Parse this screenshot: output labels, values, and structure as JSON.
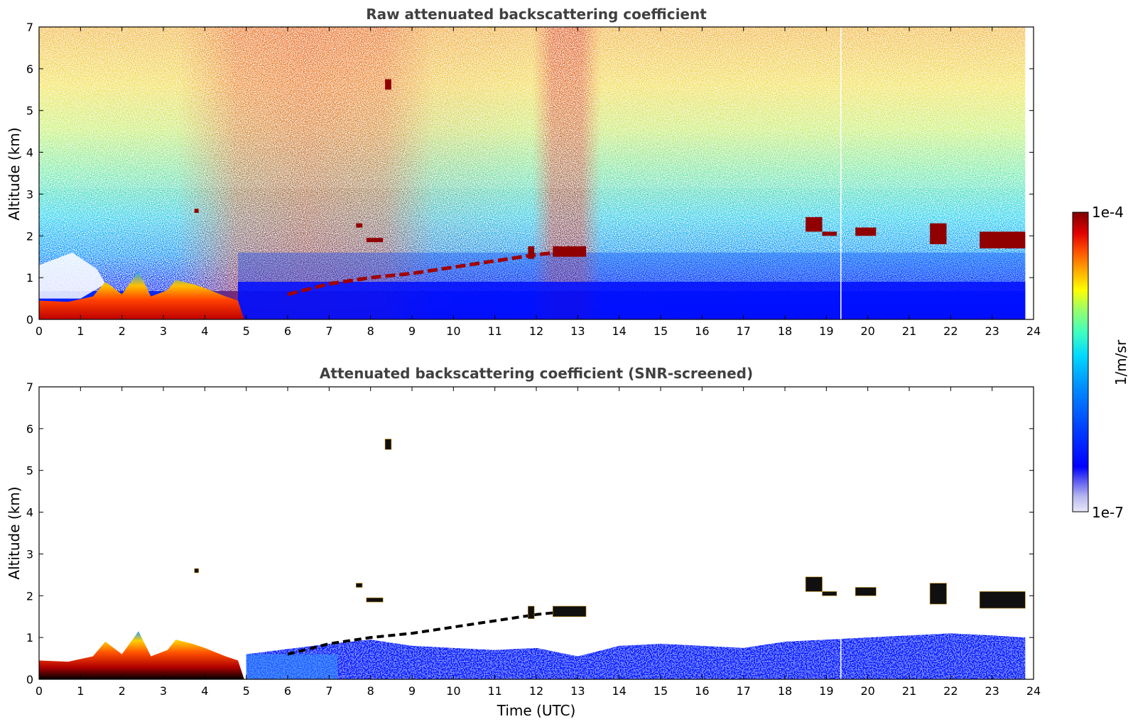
{
  "chart_data": [
    {
      "type": "heatmap",
      "title": "Raw attenuated backscattering coefficient",
      "xlabel": "",
      "ylabel": "Altitude (km)",
      "xlim": [
        0,
        24
      ],
      "ylim": [
        0,
        7
      ],
      "xticks": [
        0,
        1,
        2,
        3,
        4,
        5,
        6,
        7,
        8,
        9,
        10,
        11,
        12,
        13,
        14,
        15,
        16,
        17,
        18,
        19,
        20,
        21,
        22,
        23,
        24
      ],
      "yticks": [
        0,
        1,
        2,
        3,
        4,
        5,
        6,
        7
      ],
      "data_end_time": 23.8,
      "missing_profile_time": 19.35,
      "boundary_layer_top_km": [
        [
          0,
          0.45
        ],
        [
          1,
          0.5
        ],
        [
          1.6,
          0.85
        ],
        [
          2.4,
          1.1
        ],
        [
          3.3,
          0.9
        ],
        [
          4.0,
          0.75
        ],
        [
          4.8,
          0.45
        ],
        [
          5.0,
          0.6
        ],
        [
          6.0,
          0.6
        ],
        [
          7.0,
          0.85
        ],
        [
          8.0,
          1.0
        ],
        [
          9.0,
          1.1
        ],
        [
          10.0,
          1.25
        ],
        [
          11.0,
          1.4
        ],
        [
          12.0,
          1.55
        ],
        [
          13.0,
          1.65
        ]
      ],
      "cloud_layers": [
        {
          "start": 3.75,
          "end": 3.85,
          "base_km": 2.55,
          "top_km": 2.65
        },
        {
          "start": 7.65,
          "end": 7.8,
          "base_km": 2.2,
          "top_km": 2.3
        },
        {
          "start": 7.9,
          "end": 8.3,
          "base_km": 1.85,
          "top_km": 1.95
        },
        {
          "start": 8.35,
          "end": 8.5,
          "base_km": 5.5,
          "top_km": 5.75
        },
        {
          "start": 11.8,
          "end": 11.95,
          "base_km": 1.45,
          "top_km": 1.75
        },
        {
          "start": 12.4,
          "end": 13.2,
          "base_km": 1.5,
          "top_km": 1.75
        },
        {
          "start": 18.5,
          "end": 18.9,
          "base_km": 2.1,
          "top_km": 2.45
        },
        {
          "start": 18.9,
          "end": 19.25,
          "base_km": 2.0,
          "top_km": 2.1
        },
        {
          "start": 19.7,
          "end": 20.2,
          "base_km": 2.0,
          "top_km": 2.2
        },
        {
          "start": 21.5,
          "end": 21.9,
          "base_km": 1.8,
          "top_km": 2.3
        },
        {
          "start": 22.7,
          "end": 23.8,
          "base_km": 1.7,
          "top_km": 2.1
        }
      ]
    },
    {
      "type": "heatmap",
      "title": "Attenuated backscattering coefficient (SNR-screened)",
      "xlabel": "Time (UTC)",
      "ylabel": "Altitude (km)",
      "xlim": [
        0,
        24
      ],
      "ylim": [
        0,
        7
      ],
      "xticks": [
        0,
        1,
        2,
        3,
        4,
        5,
        6,
        7,
        8,
        9,
        10,
        11,
        12,
        13,
        14,
        15,
        16,
        17,
        18,
        19,
        20,
        21,
        22,
        23,
        24
      ],
      "yticks": [
        0,
        1,
        2,
        3,
        4,
        5,
        6,
        7
      ],
      "screened_top_km": [
        [
          5.0,
          0.6
        ],
        [
          7.0,
          0.85
        ],
        [
          8.0,
          0.95
        ],
        [
          9.0,
          0.8
        ],
        [
          10.0,
          0.75
        ],
        [
          11.0,
          0.7
        ],
        [
          12.0,
          0.75
        ],
        [
          13.0,
          0.55
        ],
        [
          14.0,
          0.8
        ],
        [
          15.0,
          0.85
        ],
        [
          16.0,
          0.8
        ],
        [
          17.0,
          0.75
        ],
        [
          18.0,
          0.9
        ],
        [
          19.0,
          0.95
        ],
        [
          20.0,
          1.0
        ],
        [
          21.0,
          1.05
        ],
        [
          22.0,
          1.1
        ],
        [
          23.0,
          1.05
        ],
        [
          23.8,
          1.0
        ]
      ]
    }
  ],
  "colorbar": {
    "label": "1/m/sr",
    "max_label": "1e-4",
    "min_label": "1e-7",
    "min_value": 1e-07,
    "max_value": 0.0001,
    "scale": "log",
    "colormap": [
      "#e8e8f8",
      "#b8b8f0",
      "#6060f0",
      "#0000ff",
      "#0040ff",
      "#0090ff",
      "#00d8ff",
      "#40ffc0",
      "#a0ff60",
      "#ffff00",
      "#ffb000",
      "#ff5000",
      "#e00000",
      "#800000"
    ]
  }
}
